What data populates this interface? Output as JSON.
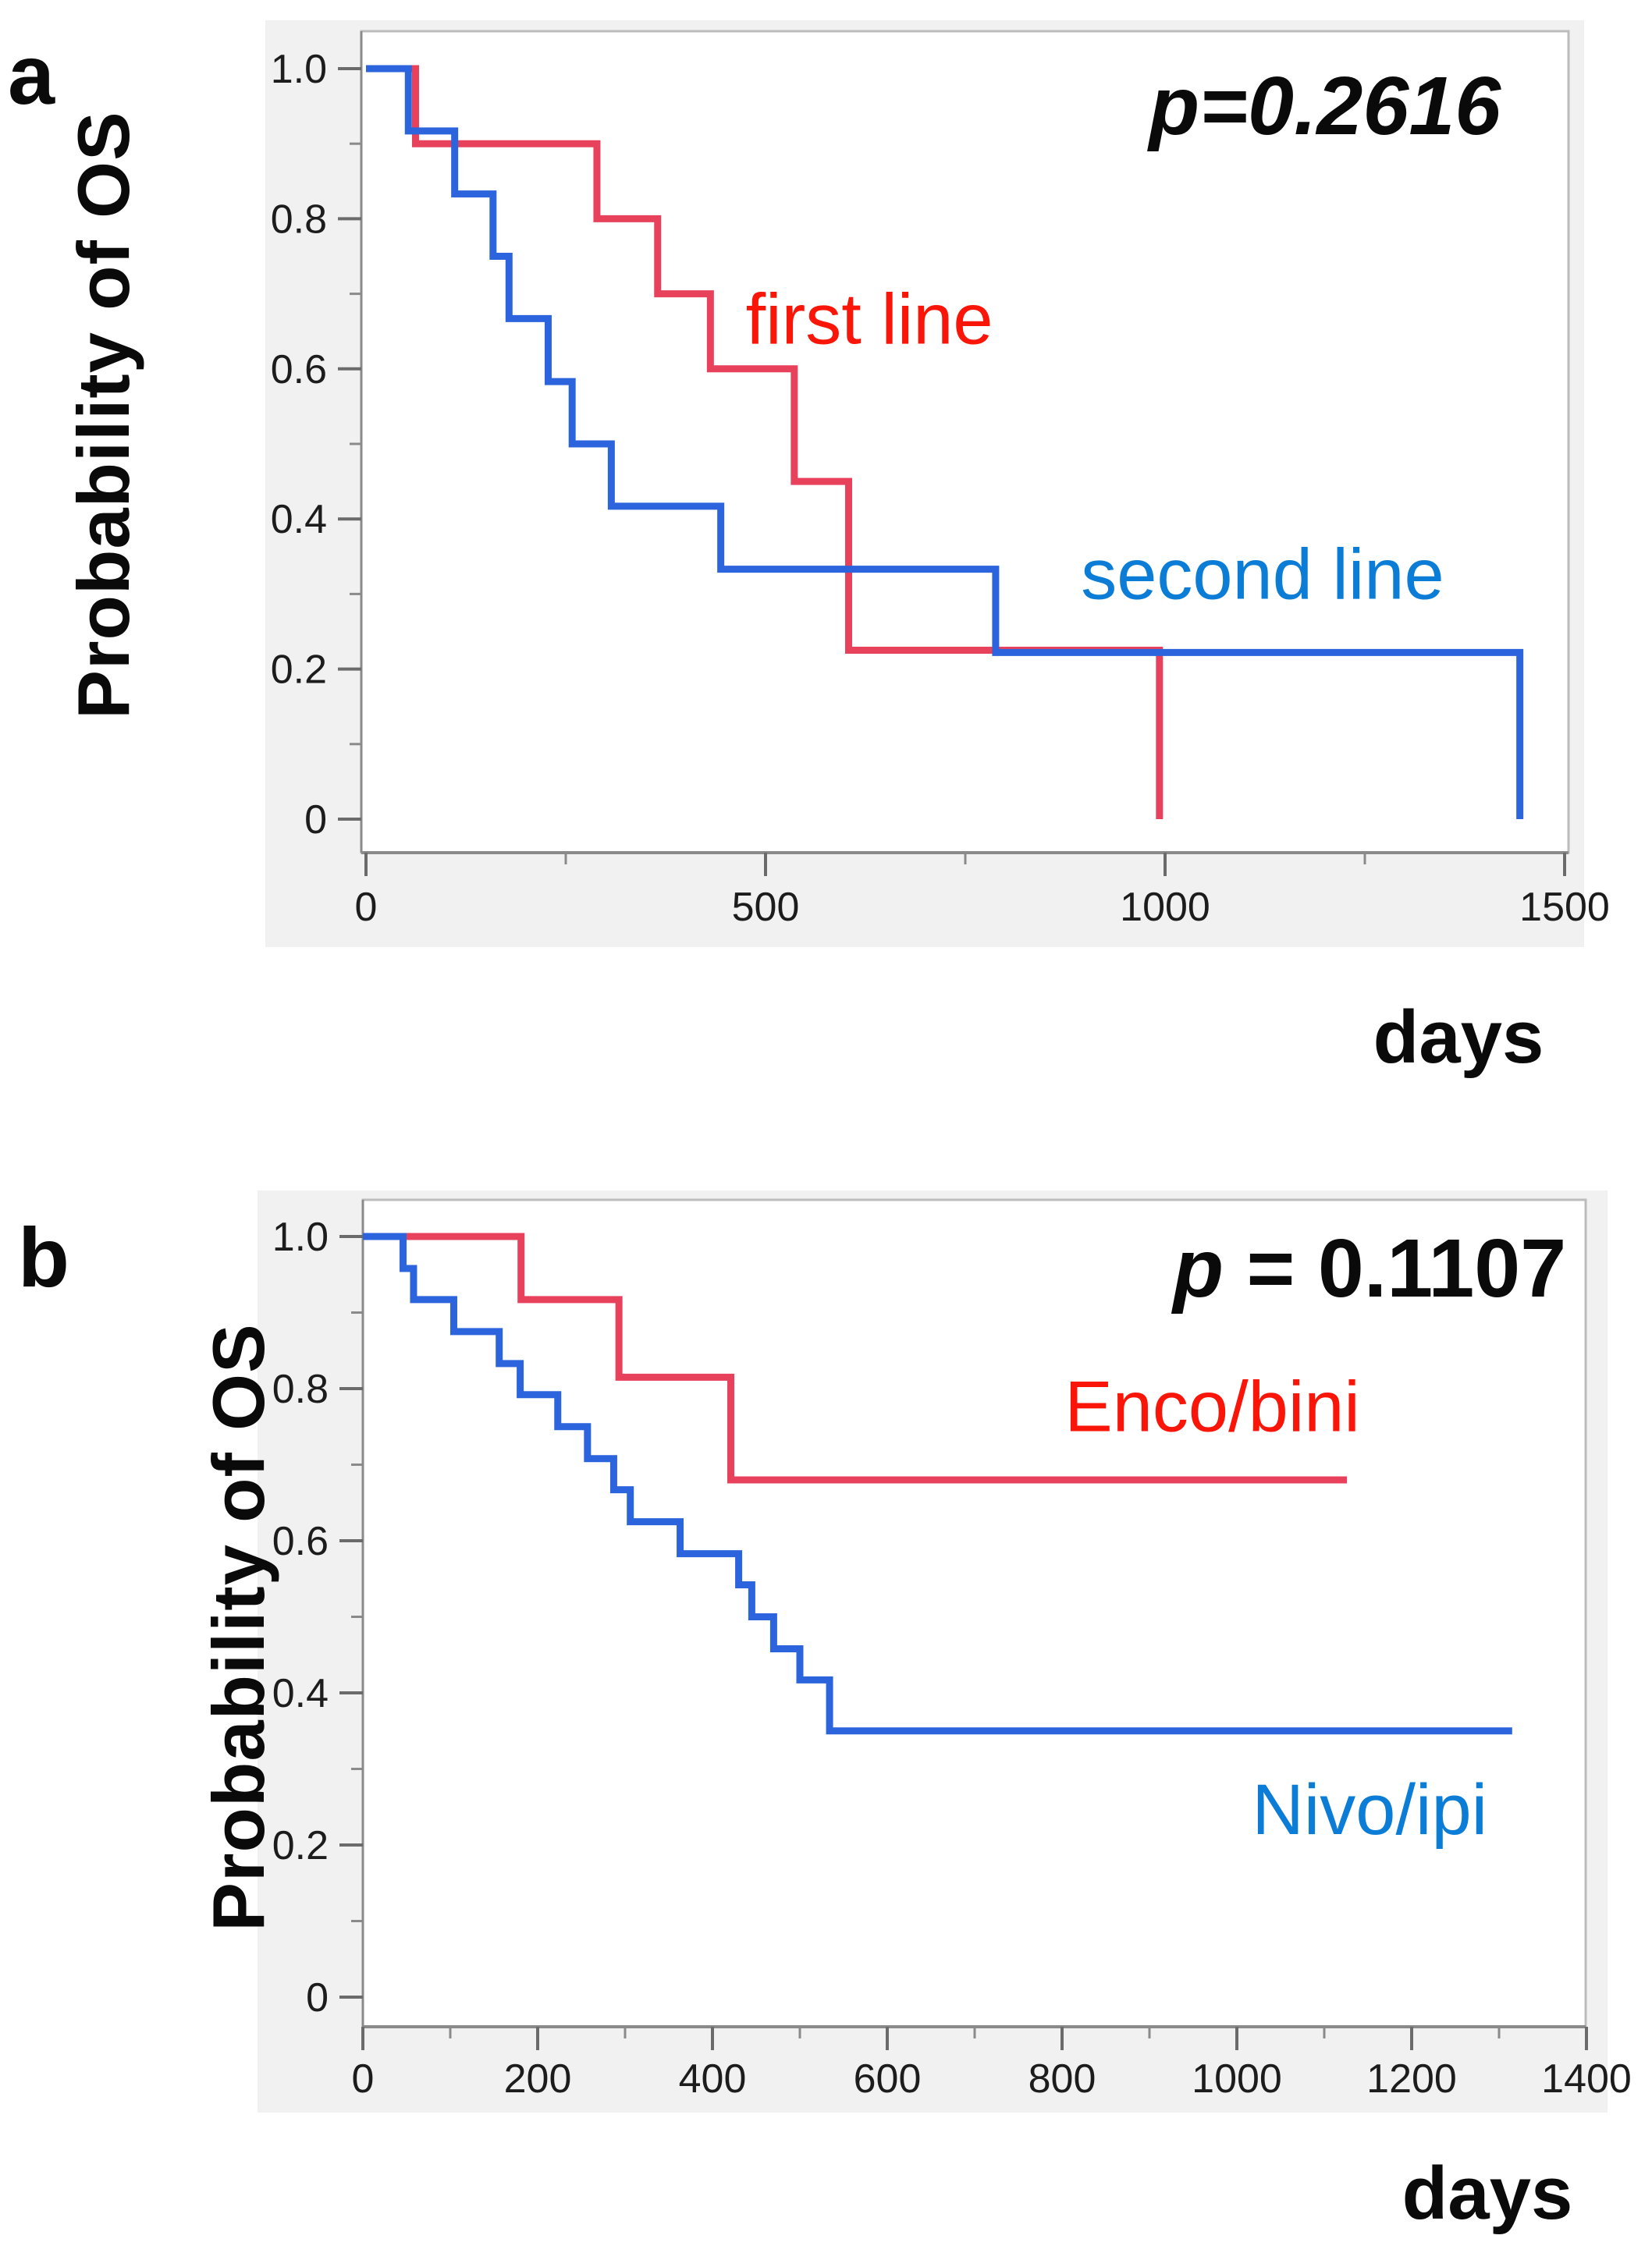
{
  "figure_kind": "kaplan_meier_survival_figure",
  "chart_data": [
    {
      "type": "line",
      "step": true,
      "panel_letter": "a",
      "ylabel": "Probability of OS",
      "xlabel": "days",
      "p_value_label": "p=0.2616",
      "p_value_italic_all": true,
      "p_value_at": {
        "day": 1200,
        "prob": 0.95
      },
      "xlim": [
        0,
        1505
      ],
      "ylim": [
        0,
        1.0
      ],
      "x_ticks": [
        {
          "value": 0,
          "label": "0"
        },
        {
          "value": 500,
          "label": "500"
        },
        {
          "value": 1000,
          "label": "1000"
        },
        {
          "value": 1500,
          "label": "1500"
        }
      ],
      "x_minor_ticks": [
        250,
        750,
        1250
      ],
      "y_ticks": [
        {
          "value": 1.0,
          "label": "1.0"
        },
        {
          "value": 0.8,
          "label": "0.8"
        },
        {
          "value": 0.6,
          "label": "0.6"
        },
        {
          "value": 0.4,
          "label": "0.4"
        },
        {
          "value": 0.2,
          "label": "0.2"
        },
        {
          "value": 0,
          "label": "0"
        }
      ],
      "y_minor_ticks": [
        0.9,
        0.7,
        0.5,
        0.3,
        0.1
      ],
      "series": [
        {
          "name": "first line",
          "color": "#e8415c",
          "label_color": "#fa1509",
          "label_at": {
            "day": 630,
            "prob": 0.665
          },
          "start_prob": 1.0,
          "steps": [
            [
              62,
              0.9
            ],
            [
              289,
              0.8
            ],
            [
              365,
              0.7
            ],
            [
              431,
              0.6
            ],
            [
              536,
              0.45
            ],
            [
              604,
              0.225
            ]
          ],
          "end_day": 993,
          "drops_to_zero_at_end": true
        },
        {
          "name": "second line",
          "color": "#2c64dd",
          "label_color": "#0b7dd6",
          "label_at": {
            "day": 1122,
            "prob": 0.325
          },
          "start_prob": 1.0,
          "steps": [
            [
              53,
              0.917
            ],
            [
              111,
              0.833
            ],
            [
              159,
              0.75
            ],
            [
              179,
              0.667
            ],
            [
              228,
              0.583
            ],
            [
              258,
              0.5
            ],
            [
              307,
              0.417
            ],
            [
              444,
              0.333
            ],
            [
              788,
              0.222
            ]
          ],
          "end_day": 1444,
          "drops_to_zero_at_end": true
        }
      ]
    },
    {
      "type": "line",
      "step": true,
      "panel_letter": "b",
      "ylabel": "Probability of OS",
      "xlabel": "days",
      "p_value_label": "p = 0.1107",
      "p_value_italic_all": false,
      "p_value_at": {
        "day": 1152,
        "prob": 0.958
      },
      "xlim": [
        0,
        1400
      ],
      "ylim": [
        0,
        1.0
      ],
      "x_ticks": [
        {
          "value": 0,
          "label": "0"
        },
        {
          "value": 200,
          "label": "200"
        },
        {
          "value": 400,
          "label": "400"
        },
        {
          "value": 600,
          "label": "600"
        },
        {
          "value": 800,
          "label": "800"
        },
        {
          "value": 1000,
          "label": "1000"
        },
        {
          "value": 1200,
          "label": "1200"
        },
        {
          "value": 1400,
          "label": "1400"
        }
      ],
      "x_minor_ticks": [
        100,
        300,
        500,
        700,
        900,
        1100,
        1300
      ],
      "y_ticks": [
        {
          "value": 1.0,
          "label": "1.0"
        },
        {
          "value": 0.8,
          "label": "0.8"
        },
        {
          "value": 0.6,
          "label": "0.6"
        },
        {
          "value": 0.4,
          "label": "0.4"
        },
        {
          "value": 0.2,
          "label": "0.2"
        },
        {
          "value": 0,
          "label": "0"
        }
      ],
      "y_minor_ticks": [
        0.9,
        0.7,
        0.5,
        0.3,
        0.1
      ],
      "series": [
        {
          "name": "Enco/bini",
          "color": "#e8415c",
          "label_color": "#fa1509",
          "label_at": {
            "day": 972,
            "prob": 0.775
          },
          "start_prob": 1.0,
          "steps": [
            [
              181,
              0.917
            ],
            [
              293,
              0.815
            ],
            [
              421,
              0.68
            ]
          ],
          "end_day": 1126,
          "drops_to_zero_at_end": false
        },
        {
          "name": "Nivo/ipi",
          "color": "#2c64dd",
          "label_color": "#0b7dd6",
          "label_at": {
            "day": 1152,
            "prob": 0.245
          },
          "start_prob": 1.0,
          "steps": [
            [
              46,
              0.958
            ],
            [
              58,
              0.917
            ],
            [
              104,
              0.875
            ],
            [
              156,
              0.833
            ],
            [
              180,
              0.792
            ],
            [
              223,
              0.75
            ],
            [
              257,
              0.708
            ],
            [
              287,
              0.667
            ],
            [
              306,
              0.625
            ],
            [
              363,
              0.583
            ],
            [
              430,
              0.542
            ],
            [
              445,
              0.5
            ],
            [
              470,
              0.458
            ],
            [
              500,
              0.417
            ],
            [
              534,
              0.35
            ]
          ],
          "end_day": 1315,
          "drops_to_zero_at_end": false
        }
      ]
    }
  ],
  "style_colors": {
    "p_value_text": "#0a0a0a",
    "axis_line": "#8a8a8a",
    "frame_border": "#bcbcbc",
    "tick_label": "#1c1c1c",
    "axis_mat_background": "#f1f1f2",
    "plot_background": "#ffffff"
  }
}
